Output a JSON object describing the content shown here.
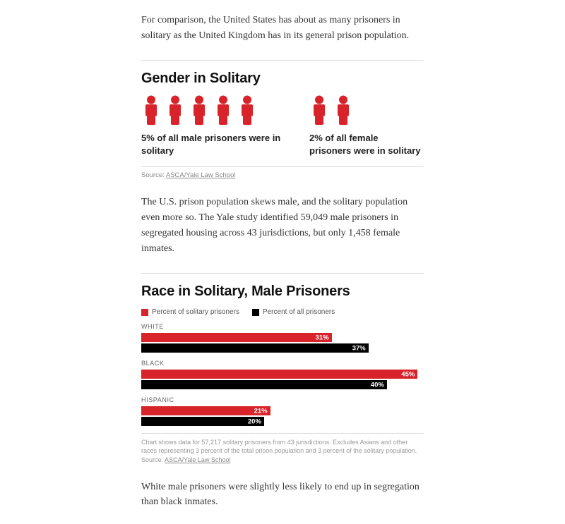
{
  "colors": {
    "red": "#d8232a",
    "black": "#000000"
  },
  "intro_para": "For comparison, the United States has about as many prisoners in solitary as the United Kingdom has in its general prison population.",
  "gender": {
    "title": "Gender in Solitary",
    "male": {
      "icon_count": 5,
      "caption": "5% of all male prisoners were in solitary"
    },
    "female": {
      "icon_count": 2,
      "caption": "2% of all female prisoners were in solitary"
    },
    "source_label": "Source: ",
    "source_link": "ASCA/Yale Law School"
  },
  "mid_para": "The U.S. prison population skews male, and the solitary population even more so. The Yale study identified 59,049 male prisoners in segregated housing across 43 jurisdictions, but only 1,458 female inmates.",
  "race": {
    "title": "Race in Solitary, Male Prisoners",
    "legend": {
      "solitary": "Percent of solitary prisoners",
      "all": "Percent of all prisoners"
    },
    "max_pct": 46,
    "groups": [
      {
        "label": "WHITE",
        "solitary": 31,
        "all": 37
      },
      {
        "label": "BLACK",
        "solitary": 45,
        "all": 40
      },
      {
        "label": "HISPANIC",
        "solitary": 21,
        "all": 20
      }
    ],
    "note": "Chart shows data for 57,217 solitary prisoners from 43 jurisdictions. Excludes Asians and other races representing 3 percent of the total prison population and 3 percent of the solitary population.",
    "source_label": "Source: ",
    "source_link": "ASCA/Yale Law School"
  },
  "end_para": "White male prisoners were slightly less likely to end up in segregation than black inmates."
}
